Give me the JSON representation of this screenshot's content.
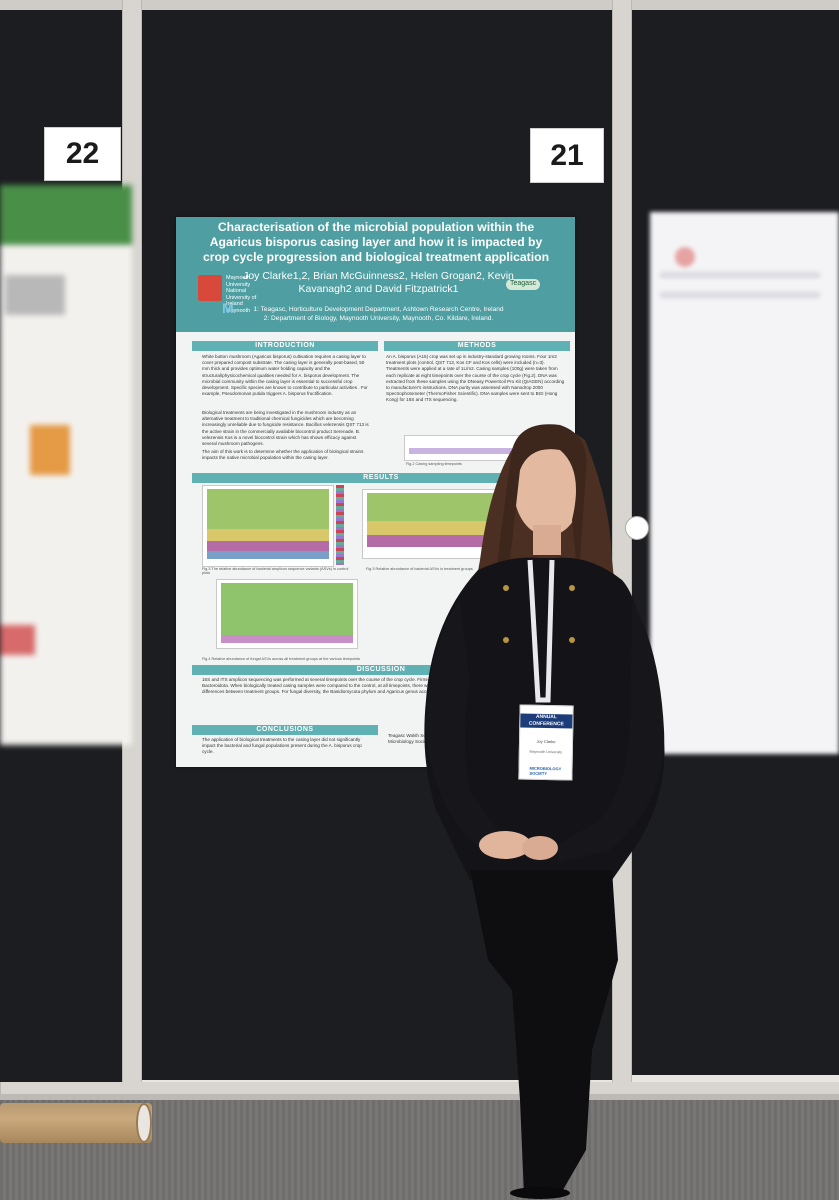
{
  "board_numbers": {
    "left": "22",
    "center": "21"
  },
  "poster": {
    "title": "Characterisation of the microbial population within the Agaricus bisporus casing layer and how it is impacted by crop cycle progression and biological treatment application",
    "authors": "Joy Clarke1,2, Brian McGuinness2, Helen Grogan2, Kevin Kavanagh2 and David Fitzpatrick1",
    "affiliation_1": "1: Teagasc, Horticulture Development Department, Ashtown Research Centre, Ireland",
    "affiliation_2": "2: Department of Biology, Maynooth University, Maynooth, Co. Kildare, Ireland.",
    "logo_left": "Maynooth University National University of Ireland Maynooth",
    "logo_right": "Teagasc",
    "sections": {
      "introduction": "INTRODUCTION",
      "methods": "METHODS",
      "results": "RESULTS",
      "discussion": "DISCUSSION",
      "conclusions": "CONCLUSIONS"
    },
    "intro_text": "White button mushroom (Agaricus bisporus) cultivation requires a casing layer to cover prepared compost substrate. The casing layer is generally peat-based, 50 mm thick and provides optimum water holding capacity and the structural/physicochemical qualities needed for A. bisporus development. The microbial community within the casing layer is essential to successful crop development. Specific species are known to contribute to particular activities . For example, Pseudomonas putida triggers A. bisporus fructification.",
    "intro_text_2": "Biological treatments are being investigated in the mushroom industry as an alternative treatment to traditional chemical fungicides which are becoming increasingly unreliable due to fungicide resistance. Bacillus velezensis QST 713 is the active strain in the commercially available biocontrol product Serenade. B. velezensis Kos is a novel biocontrol strain which has shown efficacy against several mushroom pathogens.",
    "intro_text_3": "The aim of this work is to determine whether the application of biological strains impacts the native microbial population within the casing layer.",
    "methods_text": "An A. bisporus (A15) crop was set up in industry-standard growing rooms. Four 1m2 treatment plots (control, QST 713, Kos CF and Kos cells) were included (n=3). Treatments were applied at a rate of 1L/m2. Casing samples (100g) were taken from each replicate at eight timepoints over the course of the crop cycle (Fig.2). DNA was extracted from these samples using the DNeasy PowerSoil Pro Kit (QIAGEN) according to manufacturer's instructions. DNA purity was assessed with Nanodrop 2000 Spectrophotometer (ThermoFisher Scientific). DNA samples were sent to BGI (Hong Kong) for 16S and ITS sequencing.",
    "fig_caption_2": "Fig.2 Casing sampling timepoints",
    "fig_caption_3": "Fig.3 The relative abundance of bacterial amplicon sequence variants (ASVs) in control plots",
    "fig_caption_4": "Fig.3 Relative abundance of bacterial ASVs in treatment groups",
    "fig_caption_5": "Fig.4 Relative abundance of fungal ASVs across all treatment groups at the various timepoints",
    "discussion_text": "16S and ITS amplicon sequencing was performed at several timepoints over the course of the crop cycle. Firmicutes, Proteobacteria, Bacteroidota. When biologically treated casing samples were compared to the control, at all timepoints, there were no significant differences between treatment groups. For fungal diversity, the Basidiomycota phylum and Agaricus genus accounted for the majority.",
    "conclusions_text": "The application of biological treatments to the casing layer did not significantly impact the bacterial and fungal populations present during the A. bisporus crop cycle.",
    "acknowledgements_text": "Teagasc Walsh Scholarship; Microbiology Society"
  },
  "badge": {
    "band": "ANNUAL CONFERENCE",
    "name": "Joy Clarke",
    "institution": "Maynooth University",
    "logo": "MICROBIOLOGY SOCIETY"
  },
  "colors": {
    "poster_header": "#4e9ea2",
    "section_header": "#5fb1b4",
    "board": "#1c1d21",
    "frame": "#d8d5d0"
  }
}
